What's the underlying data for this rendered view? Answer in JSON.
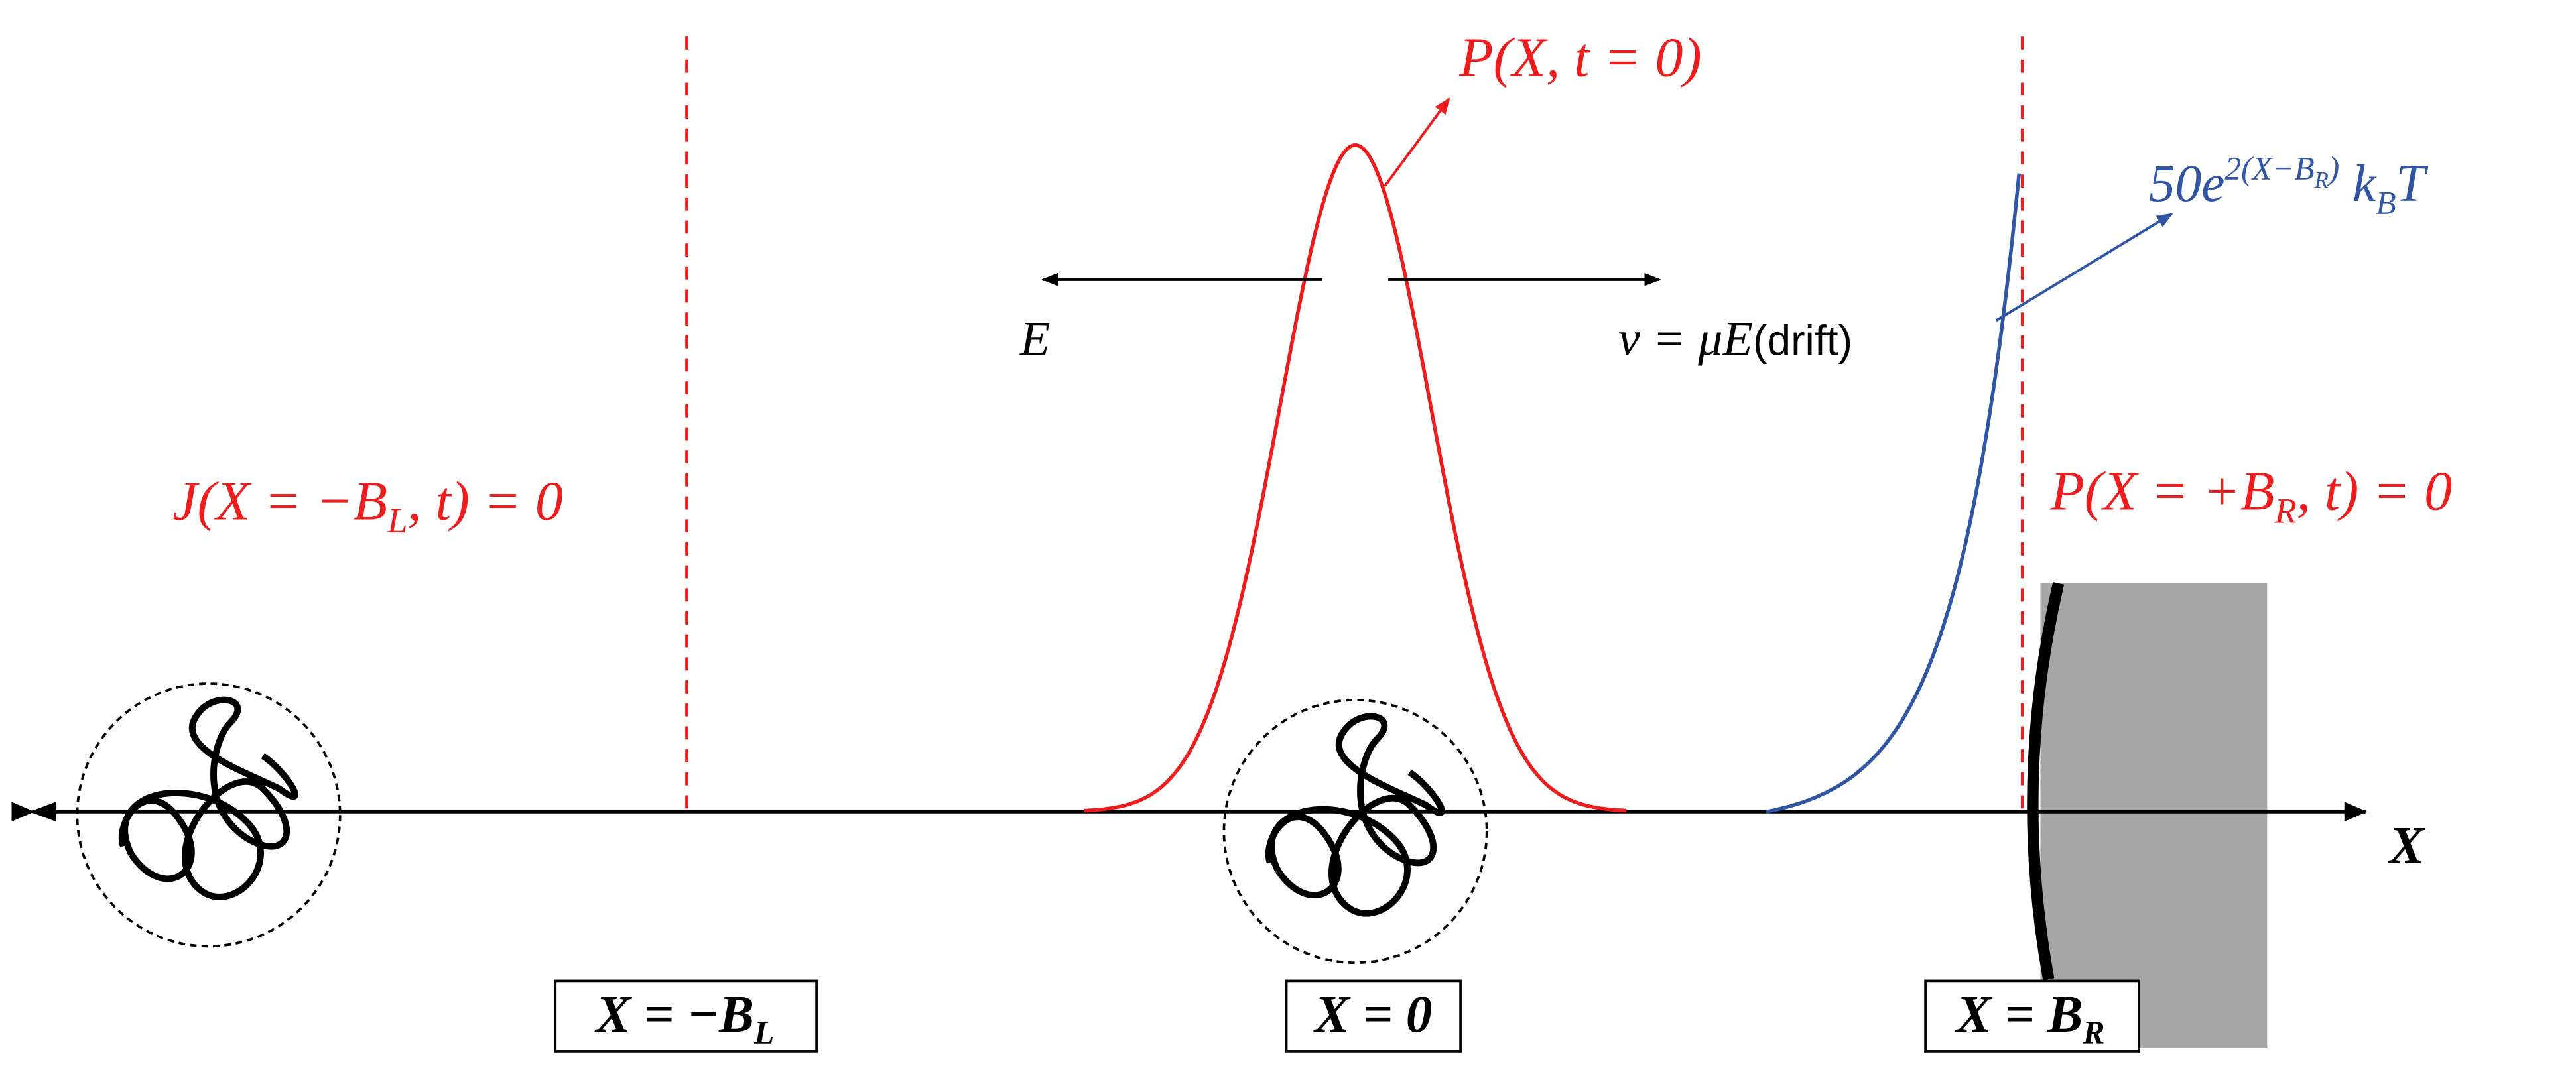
{
  "labels": {
    "initial_distribution": {
      "main": "P(X, t = 0)"
    },
    "potential": {
      "main": "50e",
      "sup_main": "2(X−B",
      "sup_sub": "R",
      "sup_end": ")",
      "end_main": " k",
      "end_sub": "B",
      "end_tail": "T"
    },
    "field": {
      "main": "E"
    },
    "drift": {
      "main": "v = μE",
      "note": "(drift)"
    },
    "left_boundary_condition": {
      "main": "J(X = −B",
      "sub": "L",
      "end": ", t) = 0"
    },
    "right_boundary_condition": {
      "main": "P(X = +B",
      "sub": "R",
      "end": ", t) = 0"
    },
    "axis": {
      "main": "X"
    },
    "left_wall": {
      "main": "X = −B",
      "sub": "L"
    },
    "origin": {
      "main": "X = 0"
    },
    "right_wall": {
      "main": "X = B",
      "sub": "R"
    }
  }
}
